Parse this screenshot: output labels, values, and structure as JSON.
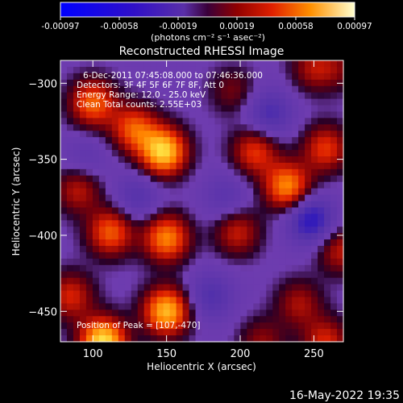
{
  "chart_data": {
    "type": "heatmap",
    "title": "Reconstructed RHESSI Image",
    "xlabel": "Heliocentric X (arcsec)",
    "ylabel": "Heliocentric Y (arcsec)",
    "xlim": [
      78,
      270
    ],
    "ylim": [
      -470,
      -285
    ],
    "x_ticks": [
      100,
      150,
      200,
      250
    ],
    "y_ticks": [
      -300,
      -350,
      -400,
      -450
    ],
    "colorbar": {
      "range": [
        -0.00097,
        0.00097
      ],
      "ticks": [
        "-0.00097",
        "-0.00058",
        "-0.00019",
        "0.00019",
        "0.00058",
        "0.00097"
      ],
      "unit_label": "(photons cm⁻² s⁻¹ asec⁻²)"
    },
    "annotations": [
      "6-Dec-2011 07:45:08.000 to 07:46:36.000",
      "Detectors: 3F 4F 5F 6F 7F 8F, Att 0",
      "Energy Range: 12.0 - 25.0 keV",
      "Clean     Total counts: 2.55E+03"
    ],
    "peak_label": "Position of Peak = [107,-470]",
    "peak": [
      107,
      -470
    ],
    "sources": [
      {
        "x": 148,
        "y": -345,
        "value": 0.00092
      },
      {
        "x": 100,
        "y": -313,
        "value": 0.00062
      },
      {
        "x": 128,
        "y": -330,
        "value": 0.00058
      },
      {
        "x": 210,
        "y": -345,
        "value": 0.0005
      },
      {
        "x": 232,
        "y": -368,
        "value": 0.00072
      },
      {
        "x": 258,
        "y": -343,
        "value": 0.0005
      },
      {
        "x": 112,
        "y": -398,
        "value": 0.0006
      },
      {
        "x": 150,
        "y": -402,
        "value": 0.0007
      },
      {
        "x": 198,
        "y": -398,
        "value": 0.00042
      },
      {
        "x": 268,
        "y": -410,
        "value": 0.0004
      },
      {
        "x": 150,
        "y": -450,
        "value": 0.00085
      },
      {
        "x": 107,
        "y": -470,
        "value": 0.00097
      },
      {
        "x": 85,
        "y": -440,
        "value": 0.00045
      },
      {
        "x": 240,
        "y": -445,
        "value": 0.00035
      },
      {
        "x": 258,
        "y": -470,
        "value": 0.00045
      },
      {
        "x": 250,
        "y": -290,
        "value": 0.00035
      },
      {
        "x": 195,
        "y": -305,
        "value": 0.00025
      },
      {
        "x": 215,
        "y": -470,
        "value": 0.0003
      },
      {
        "x": 268,
        "y": -290,
        "value": 0.0002
      },
      {
        "x": 90,
        "y": -370,
        "value": 0.0004
      },
      {
        "x": 130,
        "y": -375,
        "value": -0.0003
      },
      {
        "x": 248,
        "y": -390,
        "value": -0.0006
      },
      {
        "x": 180,
        "y": -440,
        "value": -0.00035
      },
      {
        "x": 220,
        "y": -320,
        "value": -0.0004
      },
      {
        "x": 95,
        "y": -350,
        "value": -0.0002
      },
      {
        "x": 190,
        "y": -375,
        "value": -0.00025
      }
    ]
  },
  "timestamp": "16-May-2022 19:35"
}
